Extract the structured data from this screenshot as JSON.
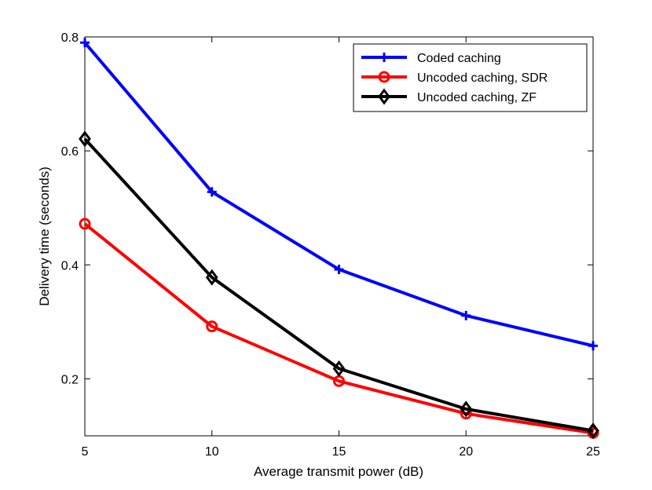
{
  "chart_data": {
    "type": "line",
    "title": "",
    "xlabel": "Average transmit power (dB)",
    "ylabel": "Delivery time (seconds)",
    "x": [
      5,
      10,
      15,
      20,
      25
    ],
    "xlim": [
      5,
      25
    ],
    "ylim": [
      0.1,
      0.8
    ],
    "xticks": [
      "5",
      "10",
      "15",
      "20",
      "25"
    ],
    "yticks": [
      "0.2",
      "0.4",
      "0.6",
      "0.8"
    ],
    "grid": false,
    "legend_position": "top-right",
    "series": [
      {
        "name": "Coded caching",
        "color": "#0000ff",
        "marker": "plus",
        "values": [
          0.79,
          0.528,
          0.392,
          0.311,
          0.258
        ]
      },
      {
        "name": "Uncoded caching, SDR",
        "color": "#ff0000",
        "marker": "circle",
        "values": [
          0.472,
          0.292,
          0.196,
          0.139,
          0.105
        ]
      },
      {
        "name": "Uncoded caching, ZF",
        "color": "#000000",
        "marker": "diamond",
        "values": [
          0.621,
          0.378,
          0.218,
          0.147,
          0.109
        ]
      }
    ]
  }
}
